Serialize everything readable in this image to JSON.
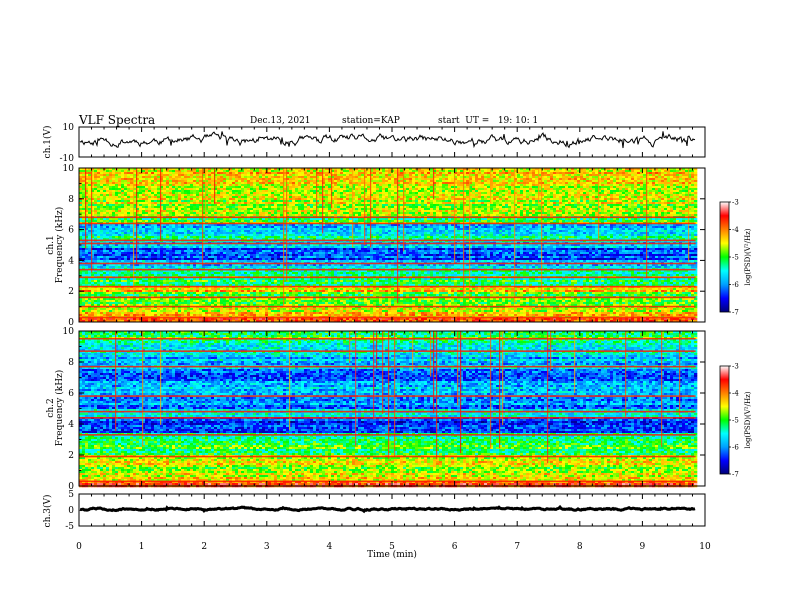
{
  "header": {
    "title": "VLF Spectra",
    "date": "Dec.13, 2021",
    "station": "station=KAP",
    "start": "start  UT =   19: 10: 1"
  },
  "chart_data": [
    {
      "type": "line",
      "name": "ch1-waveform",
      "ylabel": "ch.1(V)",
      "ylim": [
        -10,
        10
      ],
      "yticks": [
        "10",
        "-10"
      ],
      "xlim": [
        0,
        9.85
      ],
      "trace": {
        "mean": 1.2,
        "amplitude": 4.5,
        "seed": 11
      }
    },
    {
      "type": "heatmap",
      "name": "ch1-spectrogram",
      "ylabel": "ch.1",
      "ylabel2": "Frequency (kHz)",
      "ylim": [
        0,
        10
      ],
      "yticks": [
        "0",
        "2",
        "4",
        "6",
        "8",
        "10"
      ],
      "xlim": [
        0,
        9.85
      ],
      "bands": [
        {
          "f0": 0.0,
          "f1": 0.3,
          "level": -3.8
        },
        {
          "f0": 0.3,
          "f1": 0.6,
          "level": -4.2
        },
        {
          "f0": 0.6,
          "f1": 1.0,
          "level": -4.6
        },
        {
          "f0": 1.0,
          "f1": 1.5,
          "level": -4.8
        },
        {
          "f0": 1.5,
          "f1": 2.0,
          "level": -4.9
        },
        {
          "f0": 2.0,
          "f1": 2.4,
          "level": -4.3
        },
        {
          "f0": 2.4,
          "f1": 3.0,
          "level": -5.2
        },
        {
          "f0": 3.0,
          "f1": 3.6,
          "level": -5.5
        },
        {
          "f0": 3.6,
          "f1": 4.0,
          "level": -5.9
        },
        {
          "f0": 4.0,
          "f1": 4.8,
          "level": -6.3
        },
        {
          "f0": 4.8,
          "f1": 5.2,
          "level": -5.8
        },
        {
          "f0": 5.2,
          "f1": 5.7,
          "level": -5.4
        },
        {
          "f0": 5.7,
          "f1": 6.3,
          "level": -5.9
        },
        {
          "f0": 6.3,
          "f1": 6.9,
          "level": -4.9
        },
        {
          "f0": 6.9,
          "f1": 7.6,
          "level": -4.7
        },
        {
          "f0": 7.6,
          "f1": 8.6,
          "level": -4.6
        },
        {
          "f0": 8.6,
          "f1": 9.4,
          "level": -4.5
        },
        {
          "f0": 9.4,
          "f1": 10.0,
          "level": -4.3
        }
      ],
      "lines_khz": [
        0.3,
        1.0,
        1.6,
        2.3,
        2.9,
        3.4,
        3.8,
        5.1,
        5.3,
        6.4,
        6.8
      ],
      "seed": 23
    },
    {
      "type": "heatmap",
      "name": "ch2-spectrogram",
      "ylabel": "ch.2",
      "ylabel2": "Frequency (kHz)",
      "ylim": [
        0,
        10
      ],
      "yticks": [
        "0",
        "2",
        "4",
        "6",
        "8",
        "10"
      ],
      "xlim": [
        0,
        9.85
      ],
      "bands": [
        {
          "f0": 0.0,
          "f1": 0.3,
          "level": -3.8
        },
        {
          "f0": 0.3,
          "f1": 0.8,
          "level": -4.4
        },
        {
          "f0": 0.8,
          "f1": 1.4,
          "level": -4.7
        },
        {
          "f0": 1.4,
          "f1": 2.0,
          "level": -4.6
        },
        {
          "f0": 2.0,
          "f1": 2.9,
          "level": -5.1
        },
        {
          "f0": 2.9,
          "f1": 3.4,
          "level": -5.3
        },
        {
          "f0": 3.4,
          "f1": 4.4,
          "level": -6.3
        },
        {
          "f0": 4.4,
          "f1": 5.0,
          "level": -5.7
        },
        {
          "f0": 5.0,
          "f1": 5.8,
          "level": -6.0
        },
        {
          "f0": 5.8,
          "f1": 6.8,
          "level": -5.9
        },
        {
          "f0": 6.8,
          "f1": 7.6,
          "level": -6.2
        },
        {
          "f0": 7.6,
          "f1": 8.6,
          "level": -5.8
        },
        {
          "f0": 8.6,
          "f1": 9.4,
          "level": -5.5
        },
        {
          "f0": 9.4,
          "f1": 10.0,
          "level": -5.0
        }
      ],
      "lines_khz": [
        0.3,
        1.9,
        3.3,
        4.4,
        4.8,
        5.8,
        7.7,
        8.7,
        9.5
      ],
      "seed": 47
    },
    {
      "type": "line",
      "name": "ch3-waveform",
      "ylabel": "ch.3(V)",
      "ylim": [
        -5,
        5
      ],
      "yticks": [
        "5",
        "0",
        "-5"
      ],
      "xlim": [
        0,
        9.85
      ],
      "trace": {
        "mean": 0.3,
        "amplitude": 0.45,
        "seed": 5
      }
    }
  ],
  "time_axis": {
    "xlabel": "Time (min)",
    "ticks": [
      "0",
      "1",
      "2",
      "3",
      "4",
      "5",
      "6",
      "7",
      "8",
      "9",
      "10"
    ],
    "xlim": [
      0,
      10
    ]
  },
  "colorbar": {
    "label": "log(PSD)(V²/Hz)",
    "range": [
      -7,
      -3
    ],
    "ticks": [
      "-3",
      "-4",
      "-5",
      "-6",
      "-7"
    ],
    "stops": [
      "#000078",
      "#0000ff",
      "#00a0ff",
      "#00ffff",
      "#00ff00",
      "#ffff00",
      "#ff8000",
      "#ff0000",
      "#ffffff"
    ]
  }
}
